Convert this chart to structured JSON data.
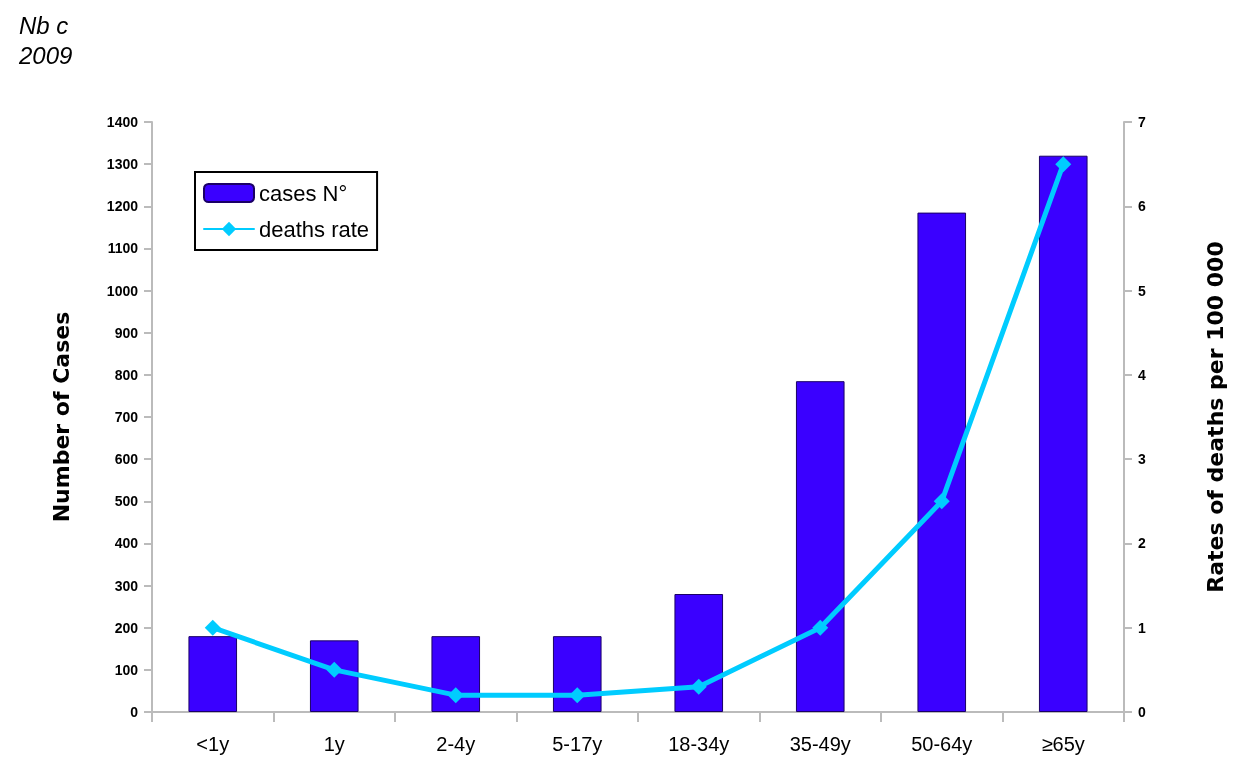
{
  "chart_data": {
    "type": "bar",
    "title": "Nb c",
    "subtitle": "2009",
    "categories": [
      "<1y",
      "1y",
      "2-4y",
      "5-17y",
      "18-34y",
      "35-49y",
      "50-64y",
      "≥65y"
    ],
    "series": [
      {
        "name": "cases N°",
        "color": "#3a00ff",
        "values": [
          180,
          170,
          180,
          180,
          280,
          785,
          1185,
          1320
        ]
      },
      {
        "name": "deaths rate",
        "type": "line",
        "axis": "y2",
        "color": "#00ccff",
        "values": [
          1,
          0.5,
          0.2,
          0.2,
          0.3,
          1,
          2.5,
          6.5
        ]
      }
    ],
    "ylabel": "Number of Cases",
    "y2label": "Rates of deaths per 100 000",
    "ylim": [
      0,
      1400
    ],
    "yticks": [
      0,
      100,
      200,
      300,
      400,
      500,
      600,
      700,
      800,
      900,
      1000,
      1100,
      1200,
      1300,
      1400
    ],
    "y2lim": [
      0,
      7
    ],
    "y2ticks": [
      0,
      1,
      2,
      3,
      4,
      5,
      6,
      7
    ],
    "grid": false,
    "legend": "top left",
    "marker": "diamond",
    "line_style": "solid"
  }
}
